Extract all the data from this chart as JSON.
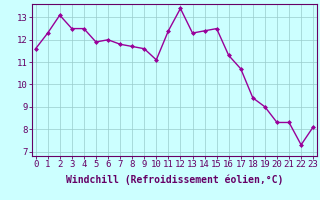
{
  "x": [
    0,
    1,
    2,
    3,
    4,
    5,
    6,
    7,
    8,
    9,
    10,
    11,
    12,
    13,
    14,
    15,
    16,
    17,
    18,
    19,
    20,
    21,
    22,
    23
  ],
  "y": [
    11.6,
    12.3,
    13.1,
    12.5,
    12.5,
    11.9,
    12.0,
    11.8,
    11.7,
    11.6,
    11.1,
    12.4,
    13.4,
    12.3,
    12.4,
    12.5,
    11.3,
    10.7,
    9.4,
    9.0,
    8.3,
    8.3,
    7.3,
    8.1
  ],
  "line_color": "#990099",
  "marker": "D",
  "marker_size": 2.0,
  "line_width": 1.0,
  "bg_color": "#ccffff",
  "grid_color": "#99cccc",
  "xlabel": "Windchill (Refroidissement éolien,°C)",
  "xlabel_fontsize": 7,
  "tick_fontsize": 6.5,
  "ylim": [
    6.8,
    13.6
  ],
  "yticks": [
    7,
    8,
    9,
    10,
    11,
    12,
    13
  ],
  "xticks": [
    0,
    1,
    2,
    3,
    4,
    5,
    6,
    7,
    8,
    9,
    10,
    11,
    12,
    13,
    14,
    15,
    16,
    17,
    18,
    19,
    20,
    21,
    22,
    23
  ],
  "xlim": [
    -0.3,
    23.3
  ],
  "spine_color": "#888888",
  "axis_color": "#660066"
}
